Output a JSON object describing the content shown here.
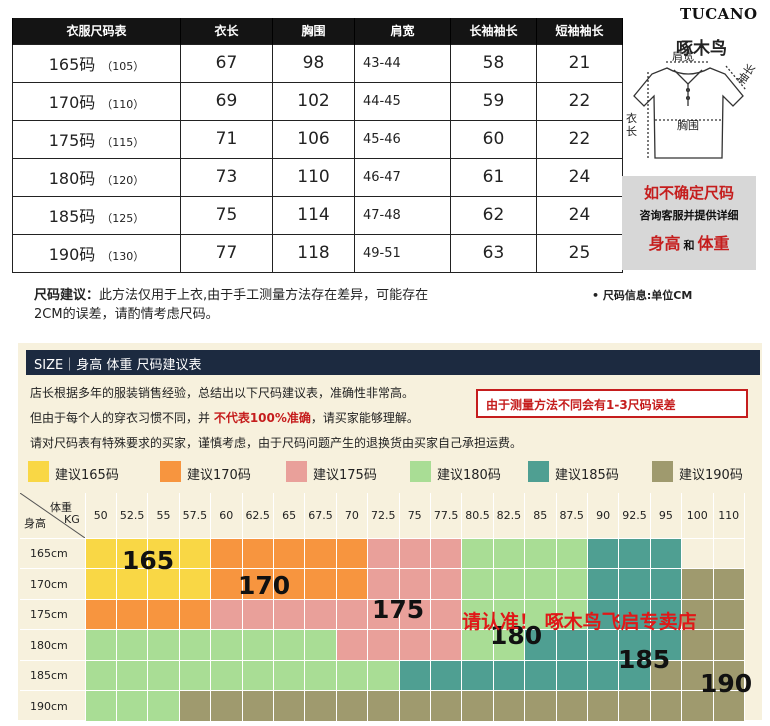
{
  "size_table": {
    "headers": [
      "衣服尺码表",
      "衣长",
      "胸围",
      "肩宽",
      "长袖袖长",
      "短袖袖长"
    ],
    "rows": [
      {
        "size": "165码",
        "code": "（105）",
        "length": "67",
        "chest": "98",
        "shoulder": "43-44",
        "long_sleeve": "58",
        "short_sleeve": "21"
      },
      {
        "size": "170码",
        "code": "（110）",
        "length": "69",
        "chest": "102",
        "shoulder": "44-45",
        "long_sleeve": "59",
        "short_sleeve": "22"
      },
      {
        "size": "175码",
        "code": "（115）",
        "length": "71",
        "chest": "106",
        "shoulder": "45-46",
        "long_sleeve": "60",
        "short_sleeve": "22"
      },
      {
        "size": "180码",
        "code": "（120）",
        "length": "73",
        "chest": "110",
        "shoulder": "46-47",
        "long_sleeve": "61",
        "short_sleeve": "24"
      },
      {
        "size": "185码",
        "code": "（125）",
        "length": "75",
        "chest": "114",
        "shoulder": "47-48",
        "long_sleeve": "62",
        "short_sleeve": "24"
      },
      {
        "size": "190码",
        "code": "（130）",
        "length": "77",
        "chest": "118",
        "shoulder": "49-51",
        "long_sleeve": "63",
        "short_sleeve": "25"
      }
    ]
  },
  "diagram": {
    "brand": "TUCANO",
    "brand_cn": "啄木鸟",
    "label_shoulder": "肩宽",
    "label_sleeve": "袖长",
    "label_length": "衣长",
    "label_chest": "胸围",
    "notice_title": "如不确定尺码",
    "notice_sub": "咨询客服并提供详细",
    "notice_height": "身高",
    "notice_and": "和",
    "notice_weight": "体重"
  },
  "note": {
    "label": "尺码建议：",
    "text": "此方法仅用于上衣,由于手工测量方法存在差异，可能存在2CM的误差，请酌情考虑尺码。",
    "info": "• 尺码信息:单位CM"
  },
  "recommend": {
    "title": "SIZE｜身高 体重 尺码建议表",
    "line1": "店长根据多年的服装销售经验，总结出以下尺码建议表，准确性非常高。",
    "line2_a": "但由于每个人的穿衣习惯不同，并 ",
    "line2_red": "不代表100%准确",
    "line2_b": "，请买家能够理解。",
    "line3": "请对尺码表有特殊要求的买家，谨慎考虑，由于尺码问题产生的退换货由买家自己承担运费。",
    "warning": "由于测量方法不同会有1-3尺码误差",
    "legend": [
      {
        "label": "建议165码",
        "color": "#f9d745"
      },
      {
        "label": "建议170码",
        "color": "#f7953f"
      },
      {
        "label": "建议175码",
        "color": "#e9a09a"
      },
      {
        "label": "建议180码",
        "color": "#a9dd95"
      },
      {
        "label": "建议185码",
        "color": "#4f9f92"
      },
      {
        "label": "建议190码",
        "color": "#9f9a6e"
      }
    ],
    "grid": {
      "corner_weight": "体重",
      "corner_unit": "KG",
      "corner_height": "身高",
      "weights": [
        "50",
        "52.5",
        "55",
        "57.5",
        "60",
        "62.5",
        "65",
        "67.5",
        "70",
        "72.5",
        "75",
        "77.5",
        "80.5",
        "82.5",
        "85",
        "87.5",
        "90",
        "92.5",
        "95",
        "100",
        "110"
      ],
      "heights": [
        "165cm",
        "170cm",
        "175cm",
        "180cm",
        "185cm",
        "190cm"
      ],
      "rows": [
        [
          165,
          165,
          165,
          165,
          170,
          170,
          170,
          170,
          170,
          175,
          175,
          175,
          180,
          180,
          180,
          180,
          185,
          185,
          185,
          "",
          ""
        ],
        [
          165,
          165,
          165,
          165,
          170,
          170,
          170,
          170,
          170,
          175,
          175,
          175,
          180,
          180,
          180,
          180,
          185,
          185,
          185,
          190,
          190
        ],
        [
          170,
          170,
          170,
          170,
          175,
          175,
          175,
          175,
          175,
          175,
          175,
          175,
          180,
          180,
          180,
          180,
          185,
          185,
          185,
          190,
          190
        ],
        [
          180,
          180,
          180,
          180,
          180,
          180,
          180,
          180,
          175,
          175,
          175,
          175,
          180,
          180,
          185,
          185,
          185,
          185,
          185,
          190,
          190
        ],
        [
          180,
          180,
          180,
          180,
          180,
          180,
          180,
          180,
          180,
          180,
          185,
          185,
          185,
          185,
          185,
          185,
          185,
          185,
          190,
          190,
          190
        ],
        [
          180,
          180,
          180,
          190,
          190,
          190,
          190,
          190,
          190,
          190,
          190,
          190,
          190,
          190,
          190,
          190,
          190,
          190,
          190,
          190,
          190
        ]
      ],
      "big_labels": [
        "165",
        "170",
        "175",
        "180",
        "185",
        "190"
      ]
    },
    "promo": "请认准！ 啄木鸟飞启专卖店"
  }
}
